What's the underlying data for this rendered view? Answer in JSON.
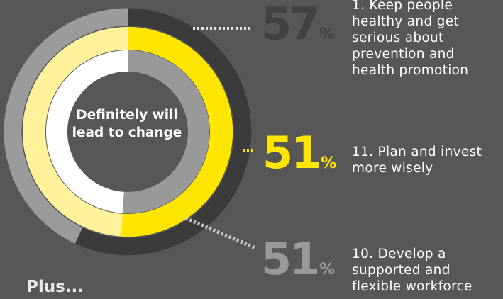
{
  "center_label": "Definitely will lead to change",
  "footer_label": "Plus...",
  "colors": {
    "background": "#575757",
    "ring_track_outer": "#9b9b9b",
    "ring_track_middle": "#fff29b",
    "ring_track_inner": "#ffffff",
    "center_fill": "#575757",
    "series_dark": "#3b3b3b",
    "series_yellow": "#ffe600",
    "series_gray": "#999999"
  },
  "items": [
    {
      "value": "57",
      "unit": "%",
      "label": "1. Keep people healthy and get serious about prevention and health promotion"
    },
    {
      "value": "51",
      "unit": "%",
      "label": "11. Plan and invest more wisely"
    },
    {
      "value": "51",
      "unit": "%",
      "label": "10. Develop a supported and flexible workforce"
    }
  ],
  "chart_data": {
    "type": "radial_bar",
    "title": "Definitely will lead to change",
    "categories": [
      "1. Keep people healthy and get serious about prevention and health promotion",
      "11. Plan and invest more wisely",
      "10. Develop a supported and flexible workforce"
    ],
    "values": [
      57,
      51,
      51
    ],
    "unit": "%",
    "range": [
      0,
      100
    ]
  }
}
